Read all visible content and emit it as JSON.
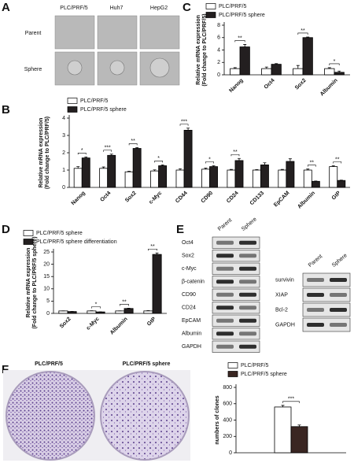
{
  "panel_letters": [
    "A",
    "B",
    "C",
    "D",
    "E",
    "F"
  ],
  "panel_a": {
    "columns": [
      "PLC/PRF/5",
      "Huh7",
      "HepG2"
    ],
    "rows": [
      "Parent",
      "Sphere"
    ]
  },
  "chart_data": [
    {
      "type": "bar",
      "y_label": [
        "Relative mRNA expression",
        "(Fold change to PLC/PRF/5)"
      ],
      "categories": [
        "Nanog",
        "Oct4",
        "Sox2",
        "Albumin"
      ],
      "series": [
        {
          "name": "PLC/PRF/5",
          "color": "#ffffff",
          "values": [
            1,
            1,
            1,
            1
          ],
          "errors": [
            0.15,
            0.25,
            0.5,
            0.15
          ]
        },
        {
          "name": "PLC/PRF/5 sphere",
          "color": "#231f20",
          "values": [
            4.5,
            1.7,
            6.0,
            0.4
          ],
          "errors": [
            0.4,
            0.1,
            0.1,
            0.2
          ]
        }
      ],
      "ylim": [
        0,
        8
      ],
      "yticks": [
        0,
        2,
        4,
        6,
        8
      ],
      "annotations": [
        {
          "text": "**",
          "category": "Nanog"
        },
        {
          "text": "**",
          "category": "Sox2"
        },
        {
          "text": "*",
          "category": "Albumin"
        }
      ]
    },
    {
      "type": "bar",
      "y_label": [
        "Relative mRNA expression",
        "(Fold change to PLC/PRF/5)"
      ],
      "categories": [
        "Nanog",
        "Oct4",
        "Sox2",
        "c-Myc",
        "CD44",
        "CD90",
        "CD24",
        "CD133",
        "EpCAM",
        "Albumin",
        "GtP"
      ],
      "series": [
        {
          "name": "PLC/PRF/5",
          "color": "#ffffff",
          "values": [
            1.1,
            1.1,
            0.9,
            0.95,
            1.0,
            1.05,
            1.0,
            1.0,
            1.0,
            1.0,
            1.2
          ],
          "errors": [
            0.1,
            0.08,
            0.03,
            0.06,
            0.08,
            0.06,
            0.04,
            0.03,
            0.04,
            0.06,
            0.05
          ]
        },
        {
          "name": "PLC/PRF/5  sphere",
          "color": "#231f20",
          "values": [
            1.7,
            1.85,
            2.25,
            1.25,
            3.3,
            1.2,
            1.55,
            1.3,
            1.5,
            0.35,
            0.4
          ],
          "errors": [
            0.06,
            0.07,
            0.05,
            0.05,
            0.12,
            0.05,
            0.12,
            0.12,
            0.15,
            0.02,
            0.02
          ]
        }
      ],
      "ylim": [
        0,
        4
      ],
      "yticks": [
        0,
        1,
        2,
        3,
        4
      ],
      "annotations": [
        {
          "text": "*",
          "category": "Nanog"
        },
        {
          "text": "***",
          "category": "Oct4"
        },
        {
          "text": "**",
          "category": "Sox2"
        },
        {
          "text": "*",
          "category": "c-Myc"
        },
        {
          "text": "***",
          "category": "CD44"
        },
        {
          "text": "*",
          "category": "CD90"
        },
        {
          "text": "**",
          "category": "CD24"
        },
        {
          "text": "**",
          "category": "Albumin"
        },
        {
          "text": "**",
          "category": "GtP"
        }
      ]
    },
    {
      "type": "bar",
      "y_label": [
        "Relative mRNA expression",
        "(Fold change to PLC/PRF/5 sphere)"
      ],
      "categories": [
        "Sox2",
        "c-Myc",
        "Albumin",
        "GtP"
      ],
      "series": [
        {
          "name": "PLC/PRF/5 sphere",
          "color": "#ffffff",
          "values": [
            1,
            1,
            1,
            1
          ],
          "errors": [
            0.05,
            0.08,
            0.05,
            0.1
          ]
        },
        {
          "name": "PLC/PRF/5 sphere differentiation",
          "color": "#231f20",
          "values": [
            0.75,
            0.6,
            2.0,
            24
          ],
          "errors": [
            0.05,
            0.05,
            0.1,
            0.6
          ]
        }
      ],
      "ylim": [
        0,
        25
      ],
      "yticks": [
        0,
        5,
        10,
        15,
        20,
        25
      ],
      "annotations": [
        {
          "text": "*",
          "category": "c-Myc"
        },
        {
          "text": "**",
          "category": "Albumin"
        },
        {
          "text": "**",
          "category": "GtP"
        }
      ]
    },
    {
      "type": "bar",
      "y_label": [
        "numbers of clones"
      ],
      "categories": [
        null
      ],
      "series": [
        {
          "name": "PLC/PRF/5",
          "color": "#ffffff",
          "values": [
            560
          ],
          "errors": [
            20
          ]
        },
        {
          "name": "PLC/PRF/5 sphere",
          "color": "#3a2622",
          "values": [
            320
          ],
          "errors": [
            20
          ]
        }
      ],
      "ylim": [
        0,
        800
      ],
      "yticks": [
        0,
        200,
        400,
        600,
        800
      ],
      "annotations": [
        {
          "text": "***",
          "category": null
        }
      ]
    }
  ],
  "panel_e": {
    "left_header": [
      "Parent",
      "Sphere"
    ],
    "left_proteins": [
      "Oct4",
      "Sox2",
      "c-Myc",
      "β-catenin",
      "CD90",
      "CD24",
      "EpCAM",
      "Albumin",
      "GAPDH"
    ],
    "right_header": [
      "Parent",
      "Sphere"
    ],
    "right_proteins": [
      "survivin",
      "XIAP",
      "Bcl-2",
      "GAPDH"
    ]
  },
  "panel_f": {
    "plates": [
      "PLC/PRF/5",
      "PLC/PRF/5 sphere"
    ]
  }
}
